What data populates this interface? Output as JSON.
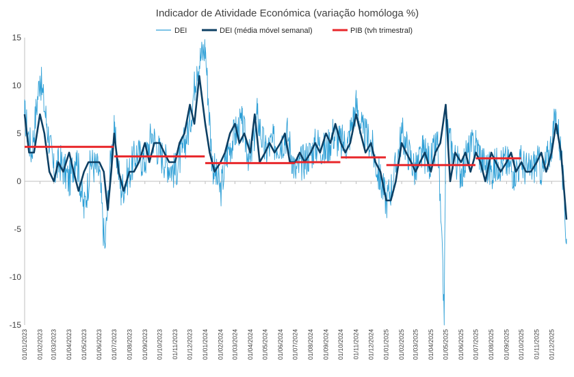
{
  "chart_data": {
    "type": "line",
    "title": "Indicador de Atividade Económica (variação homóloga %)",
    "xlabel": "",
    "ylabel": "",
    "ylim": [
      -15,
      15
    ],
    "y_ticks": [
      15,
      10,
      5,
      0,
      -5,
      -10,
      -15
    ],
    "x_range": [
      "2023-01-01",
      "2025-12-31"
    ],
    "x_tick_labels": [
      "01/01/2023",
      "01/02/2023",
      "01/03/2023",
      "01/04/2023",
      "01/05/2023",
      "01/06/2023",
      "01/07/2023",
      "01/08/2023",
      "01/09/2023",
      "01/10/2023",
      "01/11/2023",
      "01/12/2023",
      "01/01/2024",
      "01/02/2024",
      "01/03/2024",
      "01/04/2024",
      "01/05/2024",
      "01/06/2024",
      "01/07/2024",
      "01/08/2024",
      "01/09/2024",
      "01/10/2024",
      "01/11/2024",
      "01/12/2024",
      "01/01/2025",
      "01/02/2025",
      "01/03/2025",
      "01/04/2025",
      "01/05/2025",
      "01/06/2025",
      "01/07/2025",
      "01/08/2025",
      "01/09/2025",
      "01/10/2025",
      "01/11/2025",
      "01/12/2025"
    ],
    "grid": false,
    "legend_position": "top",
    "series": [
      {
        "name": "DEI",
        "color": "#2e9fd6",
        "kind": "daily",
        "x": [
          "2023-01-01",
          "2023-01-15",
          "2023-02-01",
          "2023-02-15",
          "2023-03-01",
          "2023-03-15",
          "2023-04-01",
          "2023-04-15",
          "2023-05-01",
          "2023-05-15",
          "2023-06-01",
          "2023-06-12",
          "2023-06-25",
          "2023-07-01",
          "2023-07-15",
          "2023-08-01",
          "2023-08-15",
          "2023-09-01",
          "2023-09-15",
          "2023-10-01",
          "2023-10-15",
          "2023-11-01",
          "2023-11-15",
          "2023-12-01",
          "2023-12-15",
          "2024-01-01",
          "2024-01-15",
          "2024-02-01",
          "2024-02-15",
          "2024-03-01",
          "2024-03-15",
          "2024-04-01",
          "2024-04-15",
          "2024-05-01",
          "2024-05-15",
          "2024-06-01",
          "2024-06-15",
          "2024-07-01",
          "2024-07-15",
          "2024-08-01",
          "2024-08-15",
          "2024-09-01",
          "2024-09-15",
          "2024-10-01",
          "2024-10-15",
          "2024-11-01",
          "2024-11-15",
          "2024-12-01",
          "2024-12-15",
          "2025-01-01",
          "2025-01-15",
          "2025-02-01",
          "2025-02-15",
          "2025-03-01",
          "2025-03-15",
          "2025-04-01",
          "2025-04-15",
          "2025-04-28",
          "2025-05-01",
          "2025-05-15",
          "2025-06-01",
          "2025-06-15",
          "2025-07-01",
          "2025-07-15",
          "2025-08-01",
          "2025-08-15",
          "2025-09-01",
          "2025-09-15",
          "2025-10-01",
          "2025-10-15",
          "2025-11-01",
          "2025-11-15",
          "2025-12-01",
          "2025-12-10",
          "2025-12-20",
          "2025-12-31"
        ],
        "y": [
          7,
          3,
          11,
          6,
          1,
          2,
          0,
          3,
          -3,
          2,
          1,
          -7,
          3,
          5,
          -1,
          1,
          3,
          2,
          5,
          3,
          2,
          1,
          3,
          6,
          12,
          14,
          2,
          -1,
          3,
          5,
          6,
          2,
          7,
          3,
          4,
          4,
          5,
          1,
          2,
          3,
          4,
          3,
          5,
          4,
          4,
          8,
          5,
          4,
          1,
          -2,
          0,
          5,
          3,
          1,
          3,
          2,
          4,
          -14,
          6,
          3,
          1,
          3,
          4,
          2,
          1,
          2,
          2,
          1,
          2,
          1,
          2,
          1,
          4,
          7,
          3,
          -6
        ]
      },
      {
        "name": "DEI (média móvel semanal)",
        "color": "#0d3f63",
        "kind": "weekly",
        "x": [
          "2023-01-01",
          "2023-01-10",
          "2023-01-20",
          "2023-02-01",
          "2023-02-10",
          "2023-02-20",
          "2023-03-01",
          "2023-03-10",
          "2023-03-20",
          "2023-04-01",
          "2023-04-10",
          "2023-04-20",
          "2023-05-01",
          "2023-05-10",
          "2023-05-20",
          "2023-06-01",
          "2023-06-10",
          "2023-06-18",
          "2023-06-25",
          "2023-07-01",
          "2023-07-10",
          "2023-07-20",
          "2023-08-01",
          "2023-08-10",
          "2023-08-20",
          "2023-09-01",
          "2023-09-10",
          "2023-09-20",
          "2023-10-01",
          "2023-10-10",
          "2023-10-20",
          "2023-11-01",
          "2023-11-10",
          "2023-11-20",
          "2023-12-01",
          "2023-12-10",
          "2023-12-20",
          "2024-01-01",
          "2024-01-10",
          "2024-01-20",
          "2024-02-01",
          "2024-02-10",
          "2024-02-20",
          "2024-03-01",
          "2024-03-10",
          "2024-03-20",
          "2024-04-01",
          "2024-04-10",
          "2024-04-20",
          "2024-05-01",
          "2024-05-10",
          "2024-05-20",
          "2024-06-01",
          "2024-06-10",
          "2024-06-20",
          "2024-07-01",
          "2024-07-10",
          "2024-07-20",
          "2024-08-01",
          "2024-08-10",
          "2024-08-20",
          "2024-09-01",
          "2024-09-10",
          "2024-09-20",
          "2024-10-01",
          "2024-10-10",
          "2024-10-20",
          "2024-11-01",
          "2024-11-10",
          "2024-11-20",
          "2024-12-01",
          "2024-12-10",
          "2024-12-20",
          "2025-01-01",
          "2025-01-10",
          "2025-01-20",
          "2025-02-01",
          "2025-02-10",
          "2025-02-20",
          "2025-03-01",
          "2025-03-10",
          "2025-03-20",
          "2025-04-01",
          "2025-04-10",
          "2025-04-20",
          "2025-05-01",
          "2025-05-10",
          "2025-05-20",
          "2025-06-01",
          "2025-06-10",
          "2025-06-20",
          "2025-07-01",
          "2025-07-10",
          "2025-07-20",
          "2025-08-01",
          "2025-08-10",
          "2025-08-20",
          "2025-09-01",
          "2025-09-10",
          "2025-09-20",
          "2025-10-01",
          "2025-10-10",
          "2025-10-20",
          "2025-11-01",
          "2025-11-10",
          "2025-11-20",
          "2025-12-01",
          "2025-12-10",
          "2025-12-20",
          "2025-12-31"
        ],
        "y": [
          7,
          3,
          3,
          7,
          5,
          1,
          0,
          2,
          1,
          3,
          1,
          -1,
          1,
          2,
          2,
          2,
          1,
          -3,
          1,
          5,
          1,
          -1,
          1,
          1,
          2,
          4,
          2,
          4,
          4,
          3,
          2,
          2,
          4,
          5,
          8,
          6,
          11,
          6,
          3,
          1,
          2,
          3,
          5,
          6,
          4,
          5,
          3,
          7,
          2,
          3,
          4,
          3,
          4,
          5,
          2,
          2,
          3,
          2,
          3,
          4,
          3,
          5,
          4,
          6,
          4,
          3,
          4,
          7,
          5,
          3,
          4,
          2,
          1,
          -2,
          -2,
          0,
          4,
          3,
          2,
          1,
          2,
          3,
          1,
          3,
          4,
          8,
          0,
          3,
          2,
          3,
          1,
          3,
          2,
          0,
          3,
          2,
          1,
          2,
          3,
          1,
          2,
          1,
          1,
          2,
          3,
          1,
          3,
          6,
          3,
          -4
        ]
      },
      {
        "name": "PIB (tvh trimestral)",
        "color": "#e8262a",
        "kind": "steps",
        "segments": [
          {
            "start": "2023-01-01",
            "end": "2023-06-30",
            "value": 3.6
          },
          {
            "start": "2023-07-01",
            "end": "2023-12-31",
            "value": 2.6
          },
          {
            "start": "2024-01-01",
            "end": "2024-06-30",
            "value": 1.9
          },
          {
            "start": "2024-07-01",
            "end": "2024-09-30",
            "value": 2.0
          },
          {
            "start": "2024-10-01",
            "end": "2024-12-31",
            "value": 2.5
          },
          {
            "start": "2025-01-01",
            "end": "2025-06-30",
            "value": 1.7
          },
          {
            "start": "2025-07-01",
            "end": "2025-09-30",
            "value": 2.4
          }
        ]
      }
    ]
  }
}
